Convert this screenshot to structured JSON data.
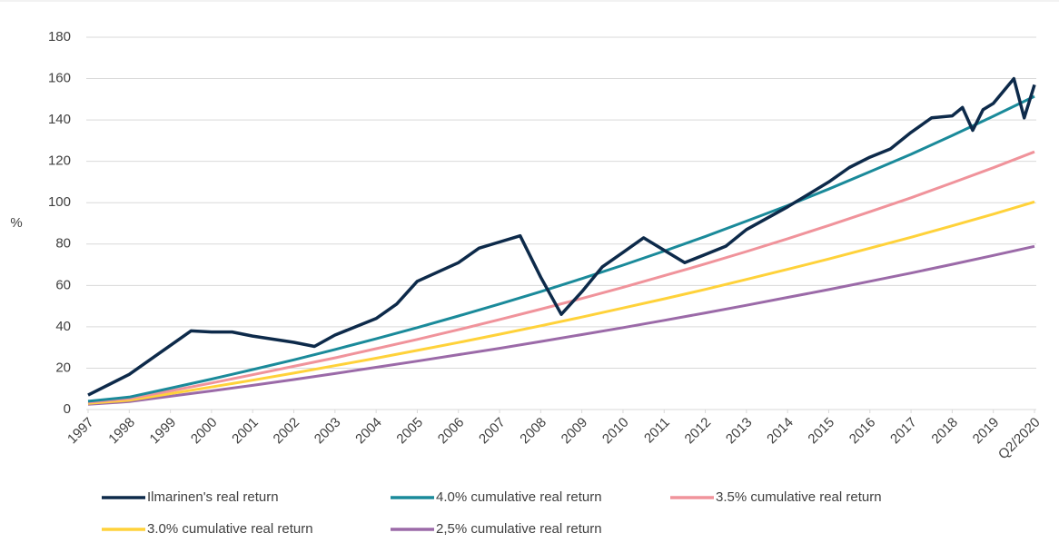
{
  "chart_data": {
    "type": "line",
    "ylabel": "%",
    "xlim": [
      1997,
      2020
    ],
    "xticks": [
      1997,
      1998,
      1999,
      2000,
      2001,
      2002,
      2003,
      2004,
      2005,
      2006,
      2007,
      2008,
      2009,
      2010,
      2011,
      2012,
      2013,
      2014,
      2015,
      2016,
      2017,
      2018,
      2019,
      {
        "value": 2020,
        "label": "Q2/2020"
      }
    ],
    "ylim": [
      0,
      180
    ],
    "yticks": [
      0,
      20,
      40,
      60,
      80,
      100,
      120,
      140,
      160,
      180
    ],
    "grid": true,
    "legend": "bottom",
    "series": [
      {
        "name": "Ilmarinen's real return",
        "color": "#0d2a4a",
        "x": [
          1997,
          1998,
          1998.5,
          1999,
          1999.5,
          2000,
          2000.5,
          2001,
          2002,
          2002.5,
          2003,
          2004,
          2004.5,
          2005,
          2006,
          2006.5,
          2007,
          2007.5,
          2008,
          2008.5,
          2009,
          2009.5,
          2010,
          2010.5,
          2011,
          2011.5,
          2012,
          2012.5,
          2013,
          2014,
          2015,
          2015.5,
          2016,
          2016.5,
          2017,
          2017.5,
          2018,
          2018.25,
          2018.5,
          2018.75,
          2019,
          2019.5,
          2019.75,
          2020
        ],
        "values": [
          7,
          17,
          24,
          31,
          38,
          37.5,
          37.5,
          35.5,
          32.5,
          30.5,
          36,
          44,
          51,
          62,
          71,
          78,
          81,
          84,
          64,
          46,
          57,
          69,
          76,
          83,
          77,
          71,
          75,
          79,
          87,
          98,
          110,
          117,
          122,
          126,
          134,
          141,
          142,
          146,
          135,
          145,
          148,
          160,
          141,
          157
        ]
      },
      {
        "name": "4.0% cumulative real return",
        "color": "#1a8a9a",
        "x": [
          1997,
          1998,
          1999,
          2000,
          2001,
          2002,
          2003,
          2004,
          2005,
          2006,
          2007,
          2008,
          2009,
          2010,
          2011,
          2012,
          2013,
          2014,
          2015,
          2016,
          2017,
          2018,
          2019,
          2020
        ],
        "values": [
          4,
          6,
          10.3,
          14.7,
          19.3,
          24,
          29,
          34.2,
          39.6,
          45.2,
          51,
          57,
          63.3,
          69.8,
          76.6,
          83.7,
          91.1,
          98.6,
          106.6,
          115,
          123.4,
          132.5,
          141.8,
          151.4
        ]
      },
      {
        "name": "3.5% cumulative real return",
        "color": "#f0939b",
        "x": [
          1997,
          1998,
          1999,
          2000,
          2001,
          2002,
          2003,
          2004,
          2005,
          2006,
          2007,
          2008,
          2009,
          2010,
          2011,
          2012,
          2013,
          2014,
          2015,
          2016,
          2017,
          2018,
          2019,
          2020
        ],
        "values": [
          3.5,
          5.3,
          9,
          12.8,
          16.8,
          20.9,
          25,
          29.4,
          33.9,
          38.6,
          43.5,
          48.5,
          53.7,
          59.1,
          64.7,
          70.4,
          76.4,
          82.6,
          89,
          95.6,
          102.4,
          109.6,
          116.9,
          124.6
        ]
      },
      {
        "name": "3.0% cumulative real return",
        "color": "#ffd23a",
        "x": [
          1997,
          1998,
          1999,
          2000,
          2001,
          2002,
          2003,
          2004,
          2005,
          2006,
          2007,
          2008,
          2009,
          2010,
          2011,
          2012,
          2013,
          2014,
          2015,
          2016,
          2017,
          2018,
          2019,
          2020
        ],
        "values": [
          3,
          4.5,
          7.7,
          10.9,
          14.2,
          17.6,
          21.2,
          24.8,
          28.6,
          32.4,
          36.4,
          40.5,
          44.7,
          49.1,
          53.5,
          58.1,
          62.9,
          67.8,
          72.8,
          78,
          83.3,
          88.8,
          94.5,
          100.4
        ]
      },
      {
        "name": "2,5% cumulative real return",
        "color": "#9b6aa8",
        "x": [
          1997,
          1998,
          1999,
          2000,
          2001,
          2002,
          2003,
          2004,
          2005,
          2006,
          2007,
          2008,
          2009,
          2010,
          2011,
          2012,
          2013,
          2014,
          2015,
          2016,
          2017,
          2018,
          2019,
          2020
        ],
        "values": [
          2.5,
          3.8,
          6.4,
          9,
          11.7,
          14.5,
          17.4,
          20.4,
          23.4,
          26.5,
          29.6,
          32.9,
          36.2,
          39.6,
          43.1,
          46.7,
          50.4,
          54.2,
          58,
          62,
          66,
          70.2,
          74.5,
          78.9
        ]
      }
    ]
  }
}
